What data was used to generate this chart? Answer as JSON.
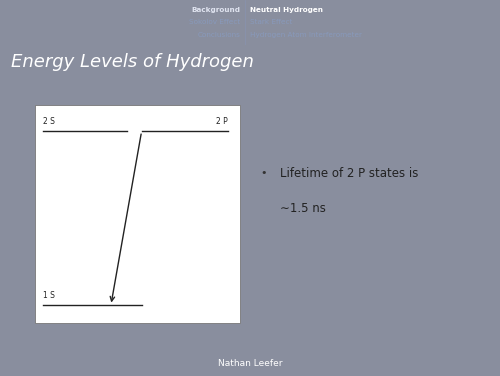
{
  "slide_bg": "#898e9e",
  "header_bg": "#3d4d80",
  "title_bar_bg": "#3a4878",
  "title_text": "Energy Levels of Hydrogen",
  "title_color": "#ffffff",
  "title_fontsize": 13,
  "nav_left": [
    "Background",
    "Sokolov Effect",
    "Conclusions"
  ],
  "nav_right_bold": "Neutral Hydrogen",
  "nav_right": [
    "Stark Effect",
    "Hydrogen Atom Interferometer"
  ],
  "footer_text": "Nathan Leefer",
  "footer_bg": "#3d4d80",
  "box_bg": "#ffffff",
  "label_2S": "2 S",
  "label_2P": "2 P",
  "label_1S": "1 S",
  "bullet_text_line1": "Lifetime of 2 P states is",
  "bullet_text_line2": "∼1.5 ns",
  "line_color": "#222222",
  "label_fontsize": 5.5,
  "bullet_fontsize": 8.5,
  "nav_fontsize": 5.2,
  "footer_fontsize": 6.5
}
